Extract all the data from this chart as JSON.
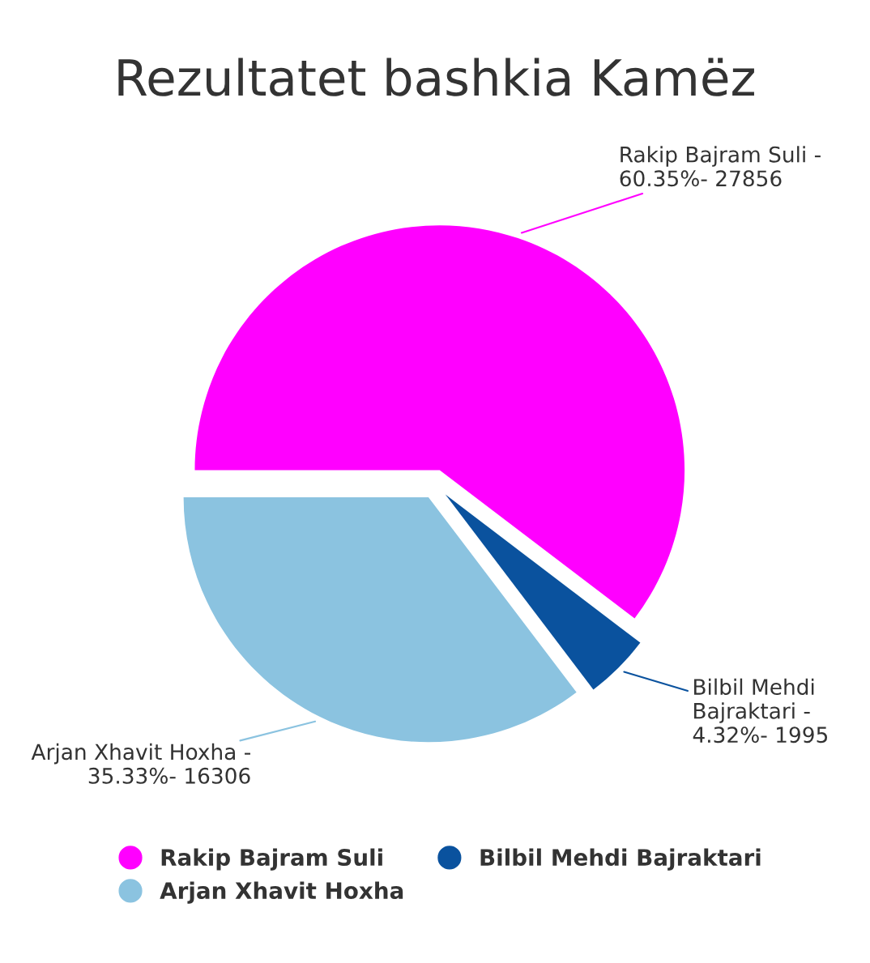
{
  "chart_data": {
    "type": "pie",
    "title": "Rezultatet bashkia Kamëz",
    "categories": [
      "Rakip Bajram Suli",
      "Bilbil Mehdi Bajraktari",
      "Arjan Xhavit Hoxha"
    ],
    "values": [
      60.35,
      4.32,
      35.33
    ],
    "colors": [
      "#ff00ff",
      "#0a529e",
      "#8bc3e0"
    ],
    "annotations": [
      "Rakip Bajram Suli - 60.35%- 27856",
      "Bilbil Mehdi Bajraktari - 4.32%- 1995",
      "Arjan Xhavit Hoxha - 35.33%- 16306"
    ],
    "legend": "bottom"
  }
}
